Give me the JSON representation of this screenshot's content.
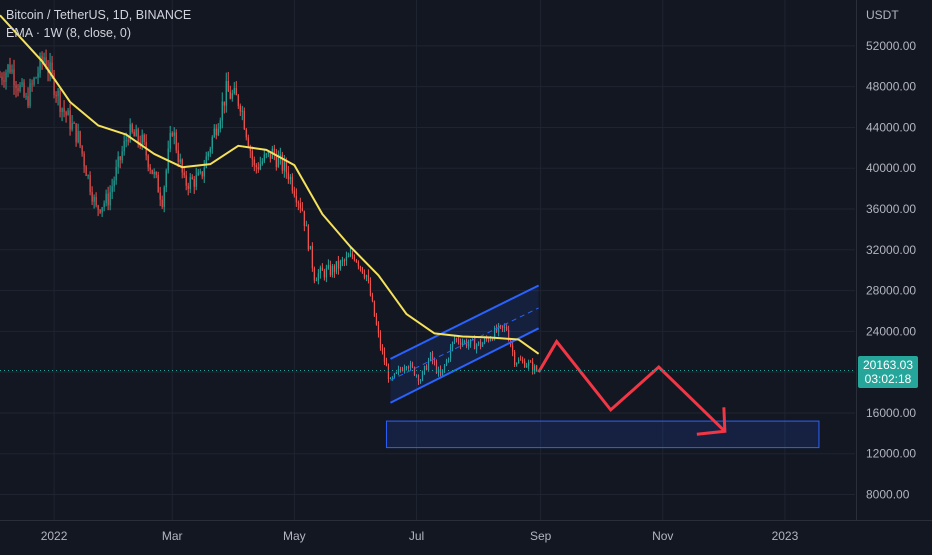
{
  "header": {
    "title": "Bitcoin / TetherUS, 1D, BINANCE",
    "indicator": "EMA · 1W (8, close, 0)"
  },
  "axis": {
    "currency": "USDT",
    "last_price": "20163.03",
    "countdown": "03:02:18"
  },
  "colors": {
    "background": "#131722",
    "grid": "#1f2430",
    "bull": "#26a69a",
    "bear": "#ef5350",
    "ema": "#f5e15a",
    "channel": "#2962ff",
    "projection": "#f23645",
    "target_zone": "#2962ff"
  },
  "chart_data": {
    "type": "candlestick",
    "title": "Bitcoin / TetherUS, 1D, BINANCE",
    "ylabel": "USDT",
    "ylim": [
      5500,
      56500
    ],
    "y_ticks": [
      8000,
      12000,
      16000,
      20000,
      24000,
      28000,
      32000,
      36000,
      40000,
      44000,
      48000,
      52000
    ],
    "y_tick_labels": [
      "8000.00",
      "12000.00",
      "16000.00",
      "",
      "24000.00",
      "28000.00",
      "32000.00",
      "36000.00",
      "40000.00",
      "44000.00",
      "48000.00",
      "52000.00"
    ],
    "x_ticks": [
      {
        "date": "2022-01-01",
        "label": "2022"
      },
      {
        "date": "2022-03-01",
        "label": "Mar"
      },
      {
        "date": "2022-05-01",
        "label": "May"
      },
      {
        "date": "2022-07-01",
        "label": "Jul"
      },
      {
        "date": "2022-09-01",
        "label": "Sep"
      },
      {
        "date": "2022-11-01",
        "label": "Nov"
      },
      {
        "date": "2023-01-01",
        "label": "2023"
      }
    ],
    "xlim": [
      "2021-12-05",
      "2023-02-05"
    ],
    "price_path": [
      [
        "2021-12-05",
        49000
      ],
      [
        "2021-12-10",
        50000
      ],
      [
        "2021-12-18",
        46500
      ],
      [
        "2021-12-27",
        51000
      ],
      [
        "2022-01-05",
        46000
      ],
      [
        "2022-01-13",
        43000
      ],
      [
        "2022-01-22",
        36000
      ],
      [
        "2022-01-28",
        37000
      ],
      [
        "2022-02-07",
        43500
      ],
      [
        "2022-02-14",
        42500
      ],
      [
        "2022-02-24",
        37000
      ],
      [
        "2022-03-01",
        44000
      ],
      [
        "2022-03-07",
        38500
      ],
      [
        "2022-03-15",
        39000
      ],
      [
        "2022-03-28",
        47500
      ],
      [
        "2022-04-04",
        46500
      ],
      [
        "2022-04-11",
        40000
      ],
      [
        "2022-04-20",
        41500
      ],
      [
        "2022-04-28",
        39500
      ],
      [
        "2022-05-05",
        36000
      ],
      [
        "2022-05-11",
        29500
      ],
      [
        "2022-05-20",
        30000
      ],
      [
        "2022-05-31",
        31500
      ],
      [
        "2022-06-06",
        29500
      ],
      [
        "2022-06-13",
        22500
      ],
      [
        "2022-06-18",
        19000
      ],
      [
        "2022-06-26",
        21000
      ],
      [
        "2022-07-03",
        19300
      ],
      [
        "2022-07-08",
        21500
      ],
      [
        "2022-07-13",
        19500
      ],
      [
        "2022-07-20",
        23300
      ],
      [
        "2022-07-27",
        22800
      ],
      [
        "2022-08-02",
        22700
      ],
      [
        "2022-08-10",
        24000
      ],
      [
        "2022-08-15",
        24300
      ],
      [
        "2022-08-19",
        21200
      ],
      [
        "2022-08-26",
        20800
      ],
      [
        "2022-08-30",
        20163
      ]
    ],
    "ema": {
      "name": "EMA · 1W (8, close, 0)",
      "points": [
        [
          "2021-12-05",
          55000
        ],
        [
          "2021-12-12",
          53500
        ],
        [
          "2021-12-26",
          50500
        ],
        [
          "2022-01-09",
          46500
        ],
        [
          "2022-01-23",
          44200
        ],
        [
          "2022-02-06",
          43300
        ],
        [
          "2022-02-20",
          41400
        ],
        [
          "2022-03-06",
          40100
        ],
        [
          "2022-03-20",
          40400
        ],
        [
          "2022-04-03",
          42200
        ],
        [
          "2022-04-17",
          41800
        ],
        [
          "2022-05-01",
          40300
        ],
        [
          "2022-05-15",
          35500
        ],
        [
          "2022-05-29",
          32300
        ],
        [
          "2022-06-12",
          29500
        ],
        [
          "2022-06-26",
          25700
        ],
        [
          "2022-07-10",
          23800
        ],
        [
          "2022-07-24",
          23500
        ],
        [
          "2022-08-07",
          23400
        ],
        [
          "2022-08-21",
          23200
        ],
        [
          "2022-08-31",
          21800
        ]
      ]
    },
    "channel": {
      "upper": [
        [
          "2022-06-18",
          21300
        ],
        [
          "2022-08-31",
          28500
        ]
      ],
      "middle": [
        [
          "2022-06-18",
          19200
        ],
        [
          "2022-08-31",
          26300
        ]
      ],
      "lower": [
        [
          "2022-06-18",
          17000
        ],
        [
          "2022-08-31",
          24300
        ]
      ]
    },
    "projection": [
      [
        "2022-08-31",
        20000
      ],
      [
        "2022-09-09",
        23000
      ],
      [
        "2022-10-06",
        16300
      ],
      [
        "2022-10-30",
        20500
      ],
      [
        "2022-12-02",
        14200
      ]
    ],
    "target_zone": {
      "x": [
        "2022-06-16",
        "2023-01-18"
      ],
      "y": [
        12600,
        15200
      ]
    },
    "last_price": 20163.03
  }
}
